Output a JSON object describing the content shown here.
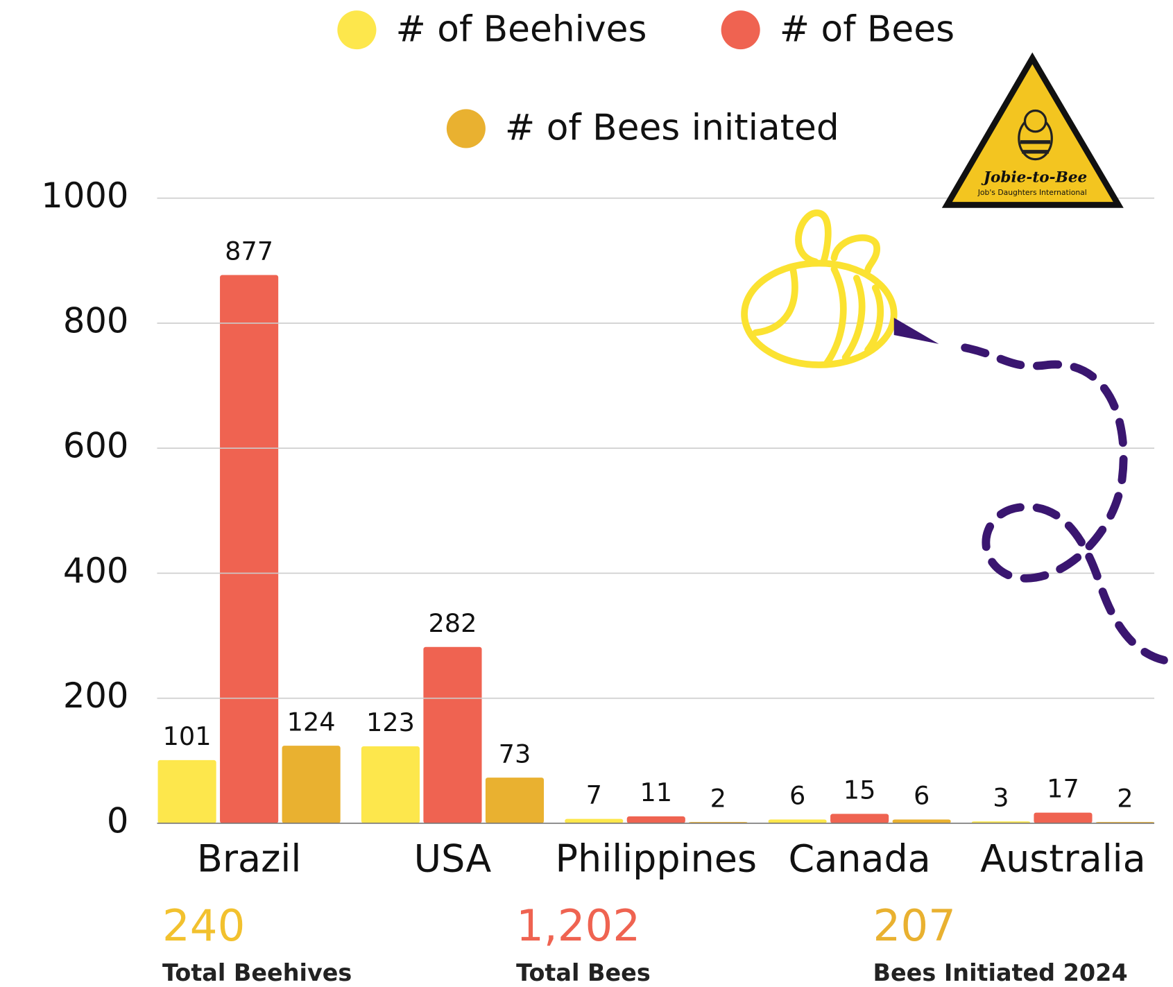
{
  "chart_data": {
    "type": "bar",
    "categories": [
      "Brazil",
      "USA",
      "Philippines",
      "Canada",
      "Australia"
    ],
    "series": [
      {
        "name": "# of Beehives",
        "color": "#fde74c",
        "values": [
          101,
          123,
          7,
          6,
          3
        ]
      },
      {
        "name": "# of Bees",
        "color": "#ef6351",
        "values": [
          877,
          282,
          11,
          15,
          17
        ]
      },
      {
        "name": "# of Bees initiated",
        "color": "#e9b130",
        "values": [
          124,
          73,
          2,
          6,
          2
        ]
      }
    ],
    "ylim": [
      0,
      1000
    ],
    "yticks": [
      0,
      200,
      400,
      600,
      800,
      1000
    ],
    "grid": true
  },
  "summary": [
    {
      "value": "240",
      "label": "Total Beehives",
      "color": "#f2c12e"
    },
    {
      "value": "1,202",
      "label": "Total Bees",
      "color": "#ef6351"
    },
    {
      "value": "207",
      "label": "Bees Initiated 2024",
      "color": "#e9b130"
    }
  ],
  "logo": {
    "title": "Jobie-to-Bee",
    "subtitle": "Job's Daughters International"
  }
}
